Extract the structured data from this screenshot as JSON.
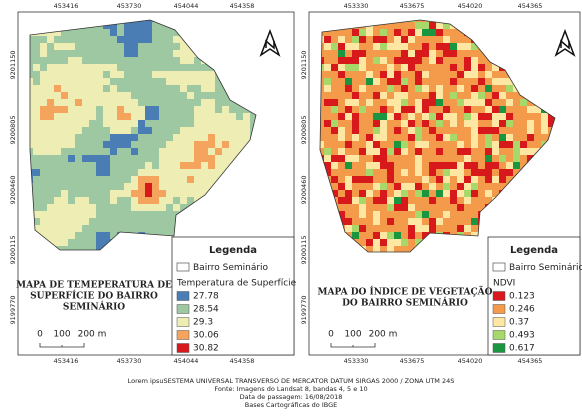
{
  "left_map": {
    "x_ticks": [
      "453416",
      "453730",
      "454044",
      "454358"
    ],
    "y_ticks": [
      "9201150",
      "9200805",
      "9200460",
      "9200115",
      "9199770"
    ],
    "title_lines": [
      "MAPA DE TEMEPERATURA DE",
      "SUPERFÍCIE DO BAIRRO",
      "SEMINÁRIO"
    ],
    "legend": {
      "title": "Legenda",
      "boundary": "Bairro Seminário",
      "field": "Temperatura de Superfície",
      "classes": [
        {
          "label": "27.78",
          "color": "#4a7db4"
        },
        {
          "label": "28.54",
          "color": "#9ec8a2"
        },
        {
          "label": "29.3",
          "color": "#eeeeb4"
        },
        {
          "label": "30.06",
          "color": "#f4a45c"
        },
        {
          "label": "30.82",
          "color": "#d7191c"
        }
      ]
    },
    "scale": [
      "0",
      "100",
      "200 m"
    ]
  },
  "right_map": {
    "x_ticks": [
      "453330",
      "453675",
      "454020",
      "454365"
    ],
    "y_ticks": [
      "9201150",
      "9200805",
      "9200460",
      "9200115",
      "9199770"
    ],
    "title_lines": [
      "MAPA DO ÍNDICE DE VEGETAÇÃO",
      "DO BAIRRO SEMINÁRIO"
    ],
    "legend": {
      "title": "Legenda",
      "boundary": "Bairro Seminário",
      "field": "NDVI",
      "classes": [
        {
          "label": "0.123",
          "color": "#d7191c"
        },
        {
          "label": "0.246",
          "color": "#f49b4b"
        },
        {
          "label": "0.37",
          "color": "#fde7a2"
        },
        {
          "label": "0.493",
          "color": "#a6d96a"
        },
        {
          "label": "0.617",
          "color": "#1a9641"
        }
      ]
    },
    "scale": [
      "0",
      "100",
      "200 m"
    ]
  },
  "footer": {
    "lines": [
      "Lorem ipsuSESTEMA UNIVERSAL TRANSVERSO DE MERCATOR DATUM SIRGAS 2000 / ZONA UTM 24S",
      "Fonte: Imagens do Landsat 8, bandas 4, 5 e 10",
      "Data de passagem: 16/08/2018",
      "Bases Cartográficas do IBGE"
    ]
  }
}
